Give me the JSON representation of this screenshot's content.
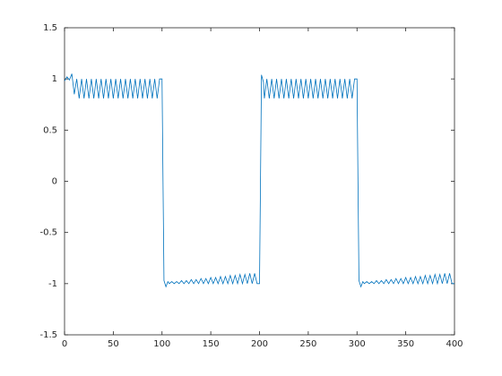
{
  "chart_data": {
    "type": "line",
    "color": "#0072bd",
    "xlim": [
      0,
      400
    ],
    "ylim": [
      -1.5,
      1.5
    ],
    "xticks": [
      0,
      50,
      100,
      150,
      200,
      250,
      300,
      350,
      400
    ],
    "yticks": [
      -1.5,
      -1,
      -0.5,
      0,
      0.5,
      1,
      1.5
    ],
    "grid": false,
    "x": [
      0,
      2.5,
      5,
      7.5,
      10,
      12.5,
      15,
      17.5,
      20,
      22.5,
      25,
      27.5,
      30,
      32.5,
      35,
      37.5,
      40,
      42.5,
      45,
      47.5,
      50,
      52.5,
      55,
      57.5,
      60,
      62.5,
      65,
      67.5,
      70,
      72.5,
      75,
      77.5,
      80,
      82.5,
      85,
      87.5,
      90,
      92.5,
      95,
      97.5,
      100,
      101,
      102,
      104,
      106,
      107.5,
      110,
      112.5,
      115,
      117.5,
      120,
      122.5,
      125,
      127.5,
      130,
      132.5,
      135,
      137.5,
      140,
      142.5,
      145,
      147.5,
      150,
      152.5,
      155,
      157.5,
      160,
      162.5,
      165,
      167.5,
      170,
      172.5,
      175,
      177.5,
      180,
      182.5,
      185,
      187.5,
      190,
      192.5,
      195,
      197.5,
      200,
      201,
      202,
      204,
      205,
      207.5,
      210,
      212.5,
      215,
      217.5,
      220,
      222.5,
      225,
      227.5,
      230,
      232.5,
      235,
      237.5,
      240,
      242.5,
      245,
      247.5,
      250,
      252.5,
      255,
      257.5,
      260,
      262.5,
      265,
      267.5,
      270,
      272.5,
      275,
      277.5,
      280,
      282.5,
      285,
      287.5,
      290,
      292.5,
      295,
      297.5,
      300,
      301,
      302,
      304,
      306,
      307.5,
      310,
      312.5,
      315,
      317.5,
      320,
      322.5,
      325,
      327.5,
      330,
      332.5,
      335,
      337.5,
      340,
      342.5,
      345,
      347.5,
      350,
      352.5,
      355,
      357.5,
      360,
      362.5,
      365,
      367.5,
      370,
      372.5,
      375,
      377.5,
      380,
      382.5,
      385,
      387.5,
      390,
      392.5,
      395,
      397.5,
      400
    ],
    "values": [
      0.98,
      1.02,
      0.99,
      1.05,
      0.85,
      1,
      0.81,
      1,
      0.81,
      1,
      0.81,
      1,
      0.81,
      1,
      0.81,
      1,
      0.81,
      1,
      0.81,
      1,
      0.81,
      1,
      0.81,
      1,
      0.81,
      1,
      0.81,
      1,
      0.81,
      1,
      0.81,
      1,
      0.81,
      1,
      0.81,
      1,
      0.81,
      1,
      0.81,
      1,
      1,
      0,
      -0.97,
      -1.03,
      -0.98,
      -1,
      -0.98,
      -1,
      -0.98,
      -1,
      -0.97,
      -1,
      -0.97,
      -1,
      -0.96,
      -1,
      -0.96,
      -1,
      -0.95,
      -1,
      -0.95,
      -1,
      -0.94,
      -1,
      -0.94,
      -1,
      -0.93,
      -1,
      -0.93,
      -1,
      -0.92,
      -1,
      -0.92,
      -1,
      -0.91,
      -1,
      -0.91,
      -1,
      -0.9,
      -1,
      -0.9,
      -1,
      -1,
      0,
      1.04,
      0.97,
      0.81,
      1,
      0.81,
      1,
      0.81,
      1,
      0.81,
      1,
      0.81,
      1,
      0.81,
      1,
      0.81,
      1,
      0.81,
      1,
      0.81,
      1,
      0.81,
      1,
      0.81,
      1,
      0.81,
      1,
      0.81,
      1,
      0.81,
      1,
      0.81,
      1,
      0.81,
      1,
      0.81,
      1,
      0.81,
      1,
      0.81,
      1,
      1,
      0,
      -0.97,
      -1.03,
      -0.98,
      -1,
      -0.98,
      -1,
      -0.98,
      -1,
      -0.97,
      -1,
      -0.97,
      -1,
      -0.96,
      -1,
      -0.96,
      -1,
      -0.95,
      -1,
      -0.95,
      -1,
      -0.94,
      -1,
      -0.94,
      -1,
      -0.93,
      -1,
      -0.93,
      -1,
      -0.92,
      -1,
      -0.92,
      -1,
      -0.91,
      -1,
      -0.91,
      -1,
      -0.9,
      -1,
      -0.9,
      -1,
      -1
    ]
  }
}
